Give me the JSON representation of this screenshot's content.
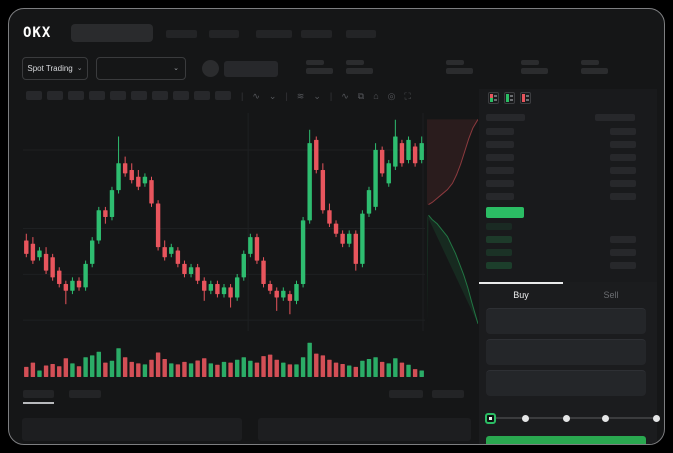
{
  "window": {
    "brand": "OKX"
  },
  "header": {
    "nav_pill_count": 5
  },
  "market_bar": {
    "selector_label": "Spot Trading",
    "chevron": "⌄",
    "stat_block_count": 5
  },
  "chart_toolbar": {
    "interval_block_count": 10,
    "icons": [
      {
        "name": "divider",
        "glyph": "|"
      },
      {
        "name": "candle-style-icon",
        "glyph": "∿"
      },
      {
        "name": "chevron-down-icon",
        "glyph": "⌄"
      },
      {
        "name": "divider",
        "glyph": "|"
      },
      {
        "name": "indicators-icon",
        "glyph": "≋"
      },
      {
        "name": "chevron-down-icon",
        "glyph": "⌄"
      },
      {
        "name": "divider",
        "glyph": "|"
      },
      {
        "name": "line-icon",
        "glyph": "∿"
      },
      {
        "name": "compare-icon",
        "glyph": "⧉"
      },
      {
        "name": "snapshot-icon",
        "glyph": "⌂"
      },
      {
        "name": "settings-icon",
        "glyph": "◎"
      },
      {
        "name": "fullscreen-icon",
        "glyph": "⛶"
      }
    ]
  },
  "orderbook": {
    "view_modes": [
      {
        "name": "orderbook-view-both-icon",
        "top": "#e8555d",
        "bottom": "#2bbd64"
      },
      {
        "name": "orderbook-view-bids-icon",
        "top": "#2bbd64",
        "bottom": "#2bbd64"
      },
      {
        "name": "orderbook-view-asks-icon",
        "top": "#e8555d",
        "bottom": "#e8555d"
      }
    ],
    "ask_row_count": 6,
    "bid_rows": [
      {
        "shade": "rgba(43,189,100,0.10)",
        "has_amount": false
      },
      {
        "shade": "rgba(43,189,100,0.20)",
        "has_amount": true
      },
      {
        "shade": "rgba(43,189,100,0.15)",
        "has_amount": true
      },
      {
        "shade": "rgba(43,189,100,0.22)",
        "has_amount": true
      }
    ],
    "last_price_color": "#2bbd64"
  },
  "trade_panel": {
    "tabs": [
      {
        "label": "Buy",
        "active": true
      },
      {
        "label": "Sell",
        "active": false
      }
    ],
    "field_count": 3,
    "slider": {
      "stop_positions_pct": [
        0,
        21,
        46,
        69,
        100
      ],
      "value_index": 0,
      "accent": "#2bbd64"
    },
    "submit_color": "#2aa850"
  },
  "bottom_bar": {
    "tab_count": 2,
    "active_tab_index": 0,
    "right_block_count": 2,
    "panel_count": 2
  },
  "colors": {
    "up": "#2ebd70",
    "down": "#e8555d",
    "bg": "#151617",
    "grid": "#1e2022"
  },
  "chart_data": {
    "type": "candlestick",
    "ylim": [
      30,
      95
    ],
    "grid": {
      "h_fractions": [
        0.17,
        0.53,
        0.74,
        0.95
      ],
      "v_fractions": [
        0.56,
        0.995
      ]
    },
    "ohlc": [
      [
        57,
        59,
        52,
        53
      ],
      [
        56,
        58,
        50,
        51
      ],
      [
        52,
        55,
        51,
        54
      ],
      [
        53,
        55,
        47,
        48
      ],
      [
        52,
        53,
        45,
        46
      ],
      [
        48,
        49,
        43,
        44
      ],
      [
        44,
        45,
        38,
        42
      ],
      [
        42,
        46,
        41,
        45
      ],
      [
        45,
        46,
        42,
        43
      ],
      [
        43,
        51,
        42,
        50
      ],
      [
        50,
        58,
        49,
        57
      ],
      [
        57,
        67,
        56,
        66
      ],
      [
        66,
        67,
        62,
        64
      ],
      [
        64,
        73,
        63,
        72
      ],
      [
        72,
        88,
        71,
        80
      ],
      [
        80,
        82,
        76,
        77
      ],
      [
        78,
        80,
        74,
        75
      ],
      [
        76,
        78,
        72,
        73
      ],
      [
        74,
        77,
        73,
        76
      ],
      [
        75,
        76,
        67,
        68
      ],
      [
        68,
        69,
        54,
        55
      ],
      [
        55,
        57,
        51,
        52
      ],
      [
        53,
        56,
        52,
        55
      ],
      [
        54,
        55,
        49,
        50
      ],
      [
        50,
        51,
        46,
        47
      ],
      [
        47,
        50,
        46,
        49
      ],
      [
        49,
        50,
        44,
        45
      ],
      [
        45,
        46,
        39,
        42
      ],
      [
        42,
        45,
        41,
        44
      ],
      [
        44,
        45,
        40,
        41
      ],
      [
        41,
        44,
        40,
        43
      ],
      [
        43,
        44,
        37,
        40
      ],
      [
        40,
        47,
        39,
        46
      ],
      [
        46,
        54,
        45,
        53
      ],
      [
        53,
        59,
        52,
        58
      ],
      [
        58,
        59,
        50,
        51
      ],
      [
        51,
        52,
        43,
        44
      ],
      [
        44,
        45,
        41,
        42
      ],
      [
        42,
        43,
        36,
        40
      ],
      [
        40,
        43,
        39,
        42
      ],
      [
        41,
        42,
        35,
        39
      ],
      [
        39,
        45,
        38,
        44
      ],
      [
        44,
        64,
        43,
        63
      ],
      [
        63,
        90,
        62,
        86
      ],
      [
        87,
        88,
        77,
        78
      ],
      [
        78,
        80,
        65,
        66
      ],
      [
        66,
        68,
        61,
        62
      ],
      [
        62,
        63,
        58,
        59
      ],
      [
        59,
        60,
        55,
        56
      ],
      [
        56,
        60,
        55,
        59
      ],
      [
        59,
        60,
        48,
        50
      ],
      [
        50,
        66,
        49,
        65
      ],
      [
        65,
        73,
        64,
        72
      ],
      [
        67,
        86,
        66,
        84
      ],
      [
        84,
        85,
        76,
        77
      ],
      [
        74,
        81,
        73,
        80
      ],
      [
        79,
        93,
        78,
        88
      ],
      [
        86,
        87,
        79,
        80
      ],
      [
        81,
        88,
        80,
        87
      ],
      [
        85,
        86,
        79,
        80
      ],
      [
        81,
        88,
        80,
        86
      ]
    ],
    "volume": [
      28,
      40,
      18,
      32,
      36,
      30,
      52,
      38,
      30,
      55,
      60,
      70,
      40,
      45,
      80,
      55,
      42,
      38,
      35,
      48,
      68,
      50,
      38,
      35,
      42,
      38,
      46,
      52,
      38,
      34,
      42,
      40,
      48,
      55,
      45,
      40,
      58,
      62,
      48,
      40,
      35,
      35,
      55,
      95,
      65,
      60,
      48,
      40,
      36,
      32,
      28,
      45,
      50,
      55,
      42,
      38,
      52,
      40,
      34,
      22,
      18
    ],
    "depth": {
      "ask_curve_pct": [
        [
          100,
          3
        ],
        [
          90,
          7
        ],
        [
          82,
          12
        ],
        [
          74,
          18
        ],
        [
          66,
          24
        ],
        [
          58,
          29
        ],
        [
          50,
          33
        ],
        [
          40,
          36
        ],
        [
          30,
          38
        ],
        [
          20,
          40
        ],
        [
          10,
          42
        ],
        [
          3,
          43
        ]
      ],
      "bid_curve_pct": [
        [
          3,
          48
        ],
        [
          10,
          50
        ],
        [
          20,
          52
        ],
        [
          30,
          55
        ],
        [
          40,
          58
        ],
        [
          48,
          62
        ],
        [
          56,
          66
        ],
        [
          64,
          71
        ],
        [
          72,
          76
        ],
        [
          80,
          82
        ],
        [
          88,
          89
        ],
        [
          94,
          94
        ],
        [
          100,
          99
        ]
      ],
      "ask_color": "#e8555d",
      "bid_color": "#2bbd64"
    }
  }
}
